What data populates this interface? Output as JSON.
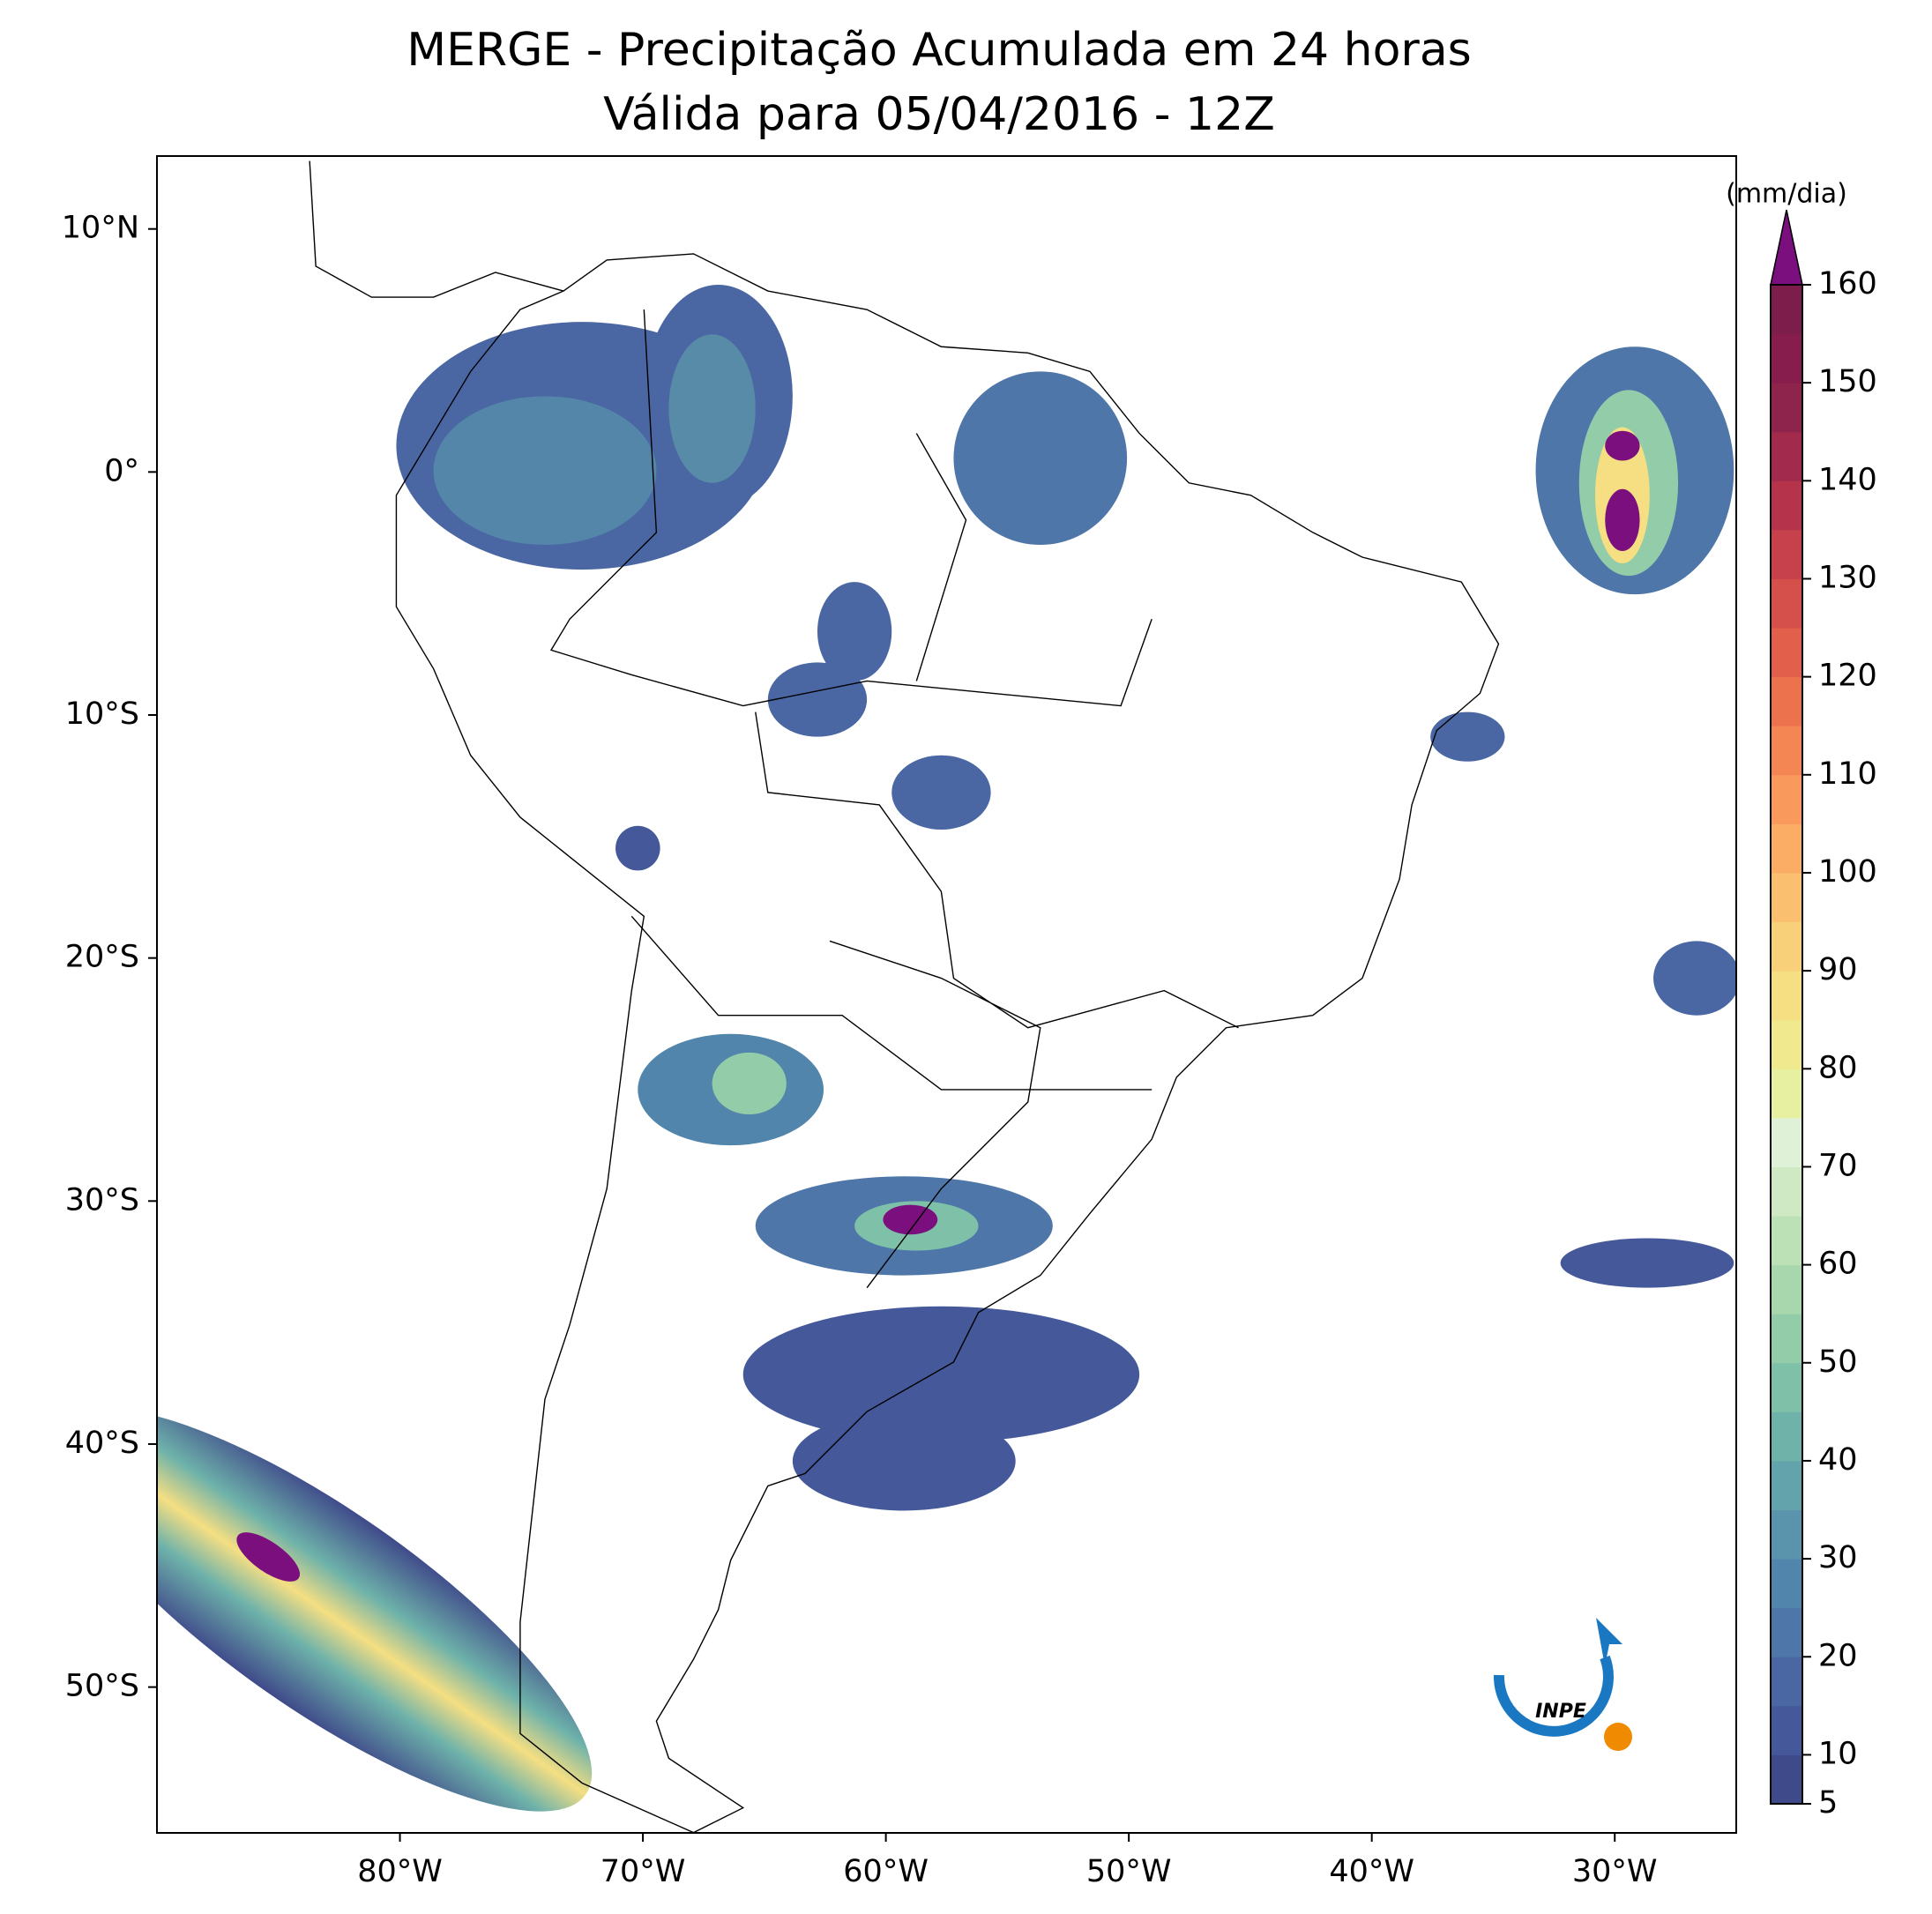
{
  "map": {
    "title": "MERGE - Precipitação Acumulada em 24 horas",
    "subtitle": "Válida para 05/04/2016 - 12Z",
    "xlim": [
      -90,
      -25
    ],
    "ylim": [
      -56,
      13
    ],
    "xticks": [
      {
        "value": -80,
        "label": "80°W"
      },
      {
        "value": -70,
        "label": "70°W"
      },
      {
        "value": -60,
        "label": "60°W"
      },
      {
        "value": -50,
        "label": "50°W"
      },
      {
        "value": -40,
        "label": "40°W"
      },
      {
        "value": -30,
        "label": "30°W"
      }
    ],
    "yticks": [
      {
        "value": 10,
        "label": "10°N"
      },
      {
        "value": 0,
        "label": "0°"
      },
      {
        "value": -10,
        "label": "10°S"
      },
      {
        "value": -20,
        "label": "20°S"
      },
      {
        "value": -30,
        "label": "30°S"
      },
      {
        "value": -40,
        "label": "40°S"
      },
      {
        "value": -50,
        "label": "50°S"
      }
    ],
    "colorbar": {
      "label": "(mm/dia)",
      "range": [
        5,
        160
      ],
      "ticks": [
        5,
        10,
        20,
        30,
        40,
        50,
        60,
        70,
        80,
        90,
        100,
        110,
        120,
        130,
        140,
        150,
        160
      ],
      "colors": [
        "#3f4a8a",
        "#44589a",
        "#4a67a3",
        "#4e76a8",
        "#5285ab",
        "#5994ac",
        "#62a3ac",
        "#6eb2aa",
        "#7fc0a8",
        "#93cca8",
        "#a8d7ad",
        "#bce1b6",
        "#cfe9c4",
        "#dff1d6",
        "#e7f0a0",
        "#f0e98d",
        "#f5df82",
        "#f8d07a",
        "#fbbf70",
        "#fbad66",
        "#f99a5c",
        "#f48653",
        "#ec724e",
        "#e25f4b",
        "#d54f4b",
        "#c6414b",
        "#b5344c",
        "#a22b4d",
        "#8e234c",
        "#861d4c",
        "#7c1d4c"
      ],
      "extend_color": "#7b0f7e"
    },
    "logo": "INPE"
  }
}
